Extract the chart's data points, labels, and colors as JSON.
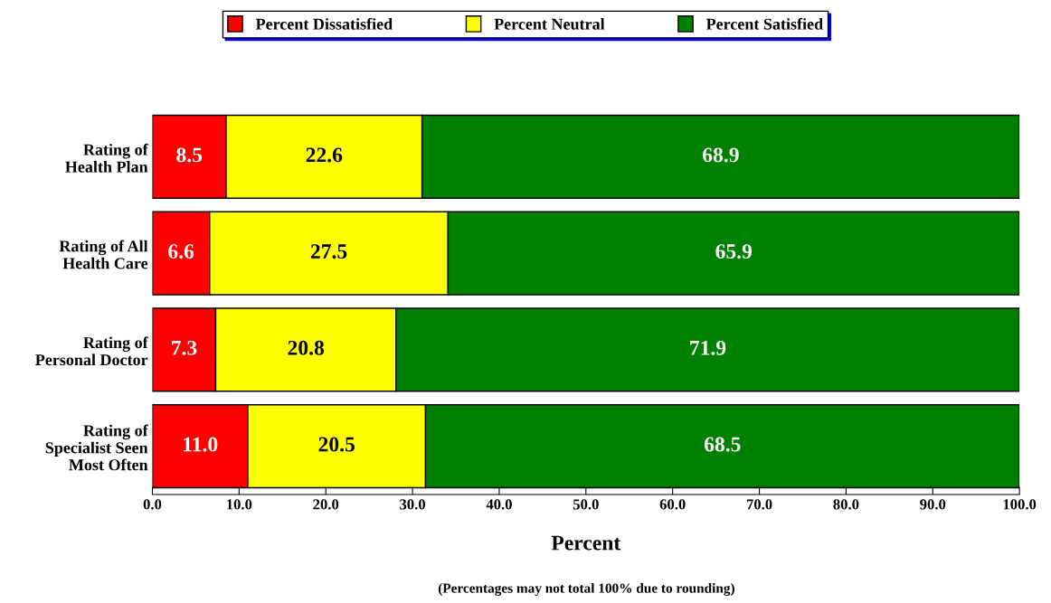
{
  "chart_data": {
    "type": "bar",
    "orientation": "horizontal",
    "stacked": true,
    "categories": [
      "Rating of\nHealth Plan",
      "Rating of All\nHealth Care",
      "Rating of\nPersonal Doctor",
      "Rating of\nSpecialist Seen\nMost Often"
    ],
    "series": [
      {
        "name": "Percent Dissatisfied",
        "color": "#ff0000",
        "values": [
          8.5,
          6.6,
          7.3,
          11.0
        ]
      },
      {
        "name": "Percent Neutral",
        "color": "#ffff00",
        "values": [
          22.6,
          27.5,
          20.8,
          20.5
        ]
      },
      {
        "name": "Percent Satisfied",
        "color": "#008000",
        "values": [
          68.9,
          65.9,
          71.9,
          68.5
        ]
      }
    ],
    "value_labels": [
      [
        "8.5",
        "6.6",
        "7.3",
        "11.0"
      ],
      [
        "22.6",
        "27.5",
        "20.8",
        "20.5"
      ],
      [
        "68.9",
        "65.9",
        "71.9",
        "68.5"
      ]
    ],
    "xlabel": "Percent",
    "xlim": [
      0,
      100
    ],
    "xticks": [
      {
        "value": 0,
        "label": "0.0"
      },
      {
        "value": 10,
        "label": "10.0"
      },
      {
        "value": 20,
        "label": "20.0"
      },
      {
        "value": 30,
        "label": "30.0"
      },
      {
        "value": 40,
        "label": "40.0"
      },
      {
        "value": 50,
        "label": "50.0"
      },
      {
        "value": 60,
        "label": "60.0"
      },
      {
        "value": 70,
        "label": "70.0"
      },
      {
        "value": 80,
        "label": "80.0"
      },
      {
        "value": 90,
        "label": "90.0"
      },
      {
        "value": 100,
        "label": "100.0"
      }
    ],
    "legend": "top",
    "grid": false,
    "annotations": [
      "(Percentages may not total 100% due to rounding)"
    ]
  }
}
